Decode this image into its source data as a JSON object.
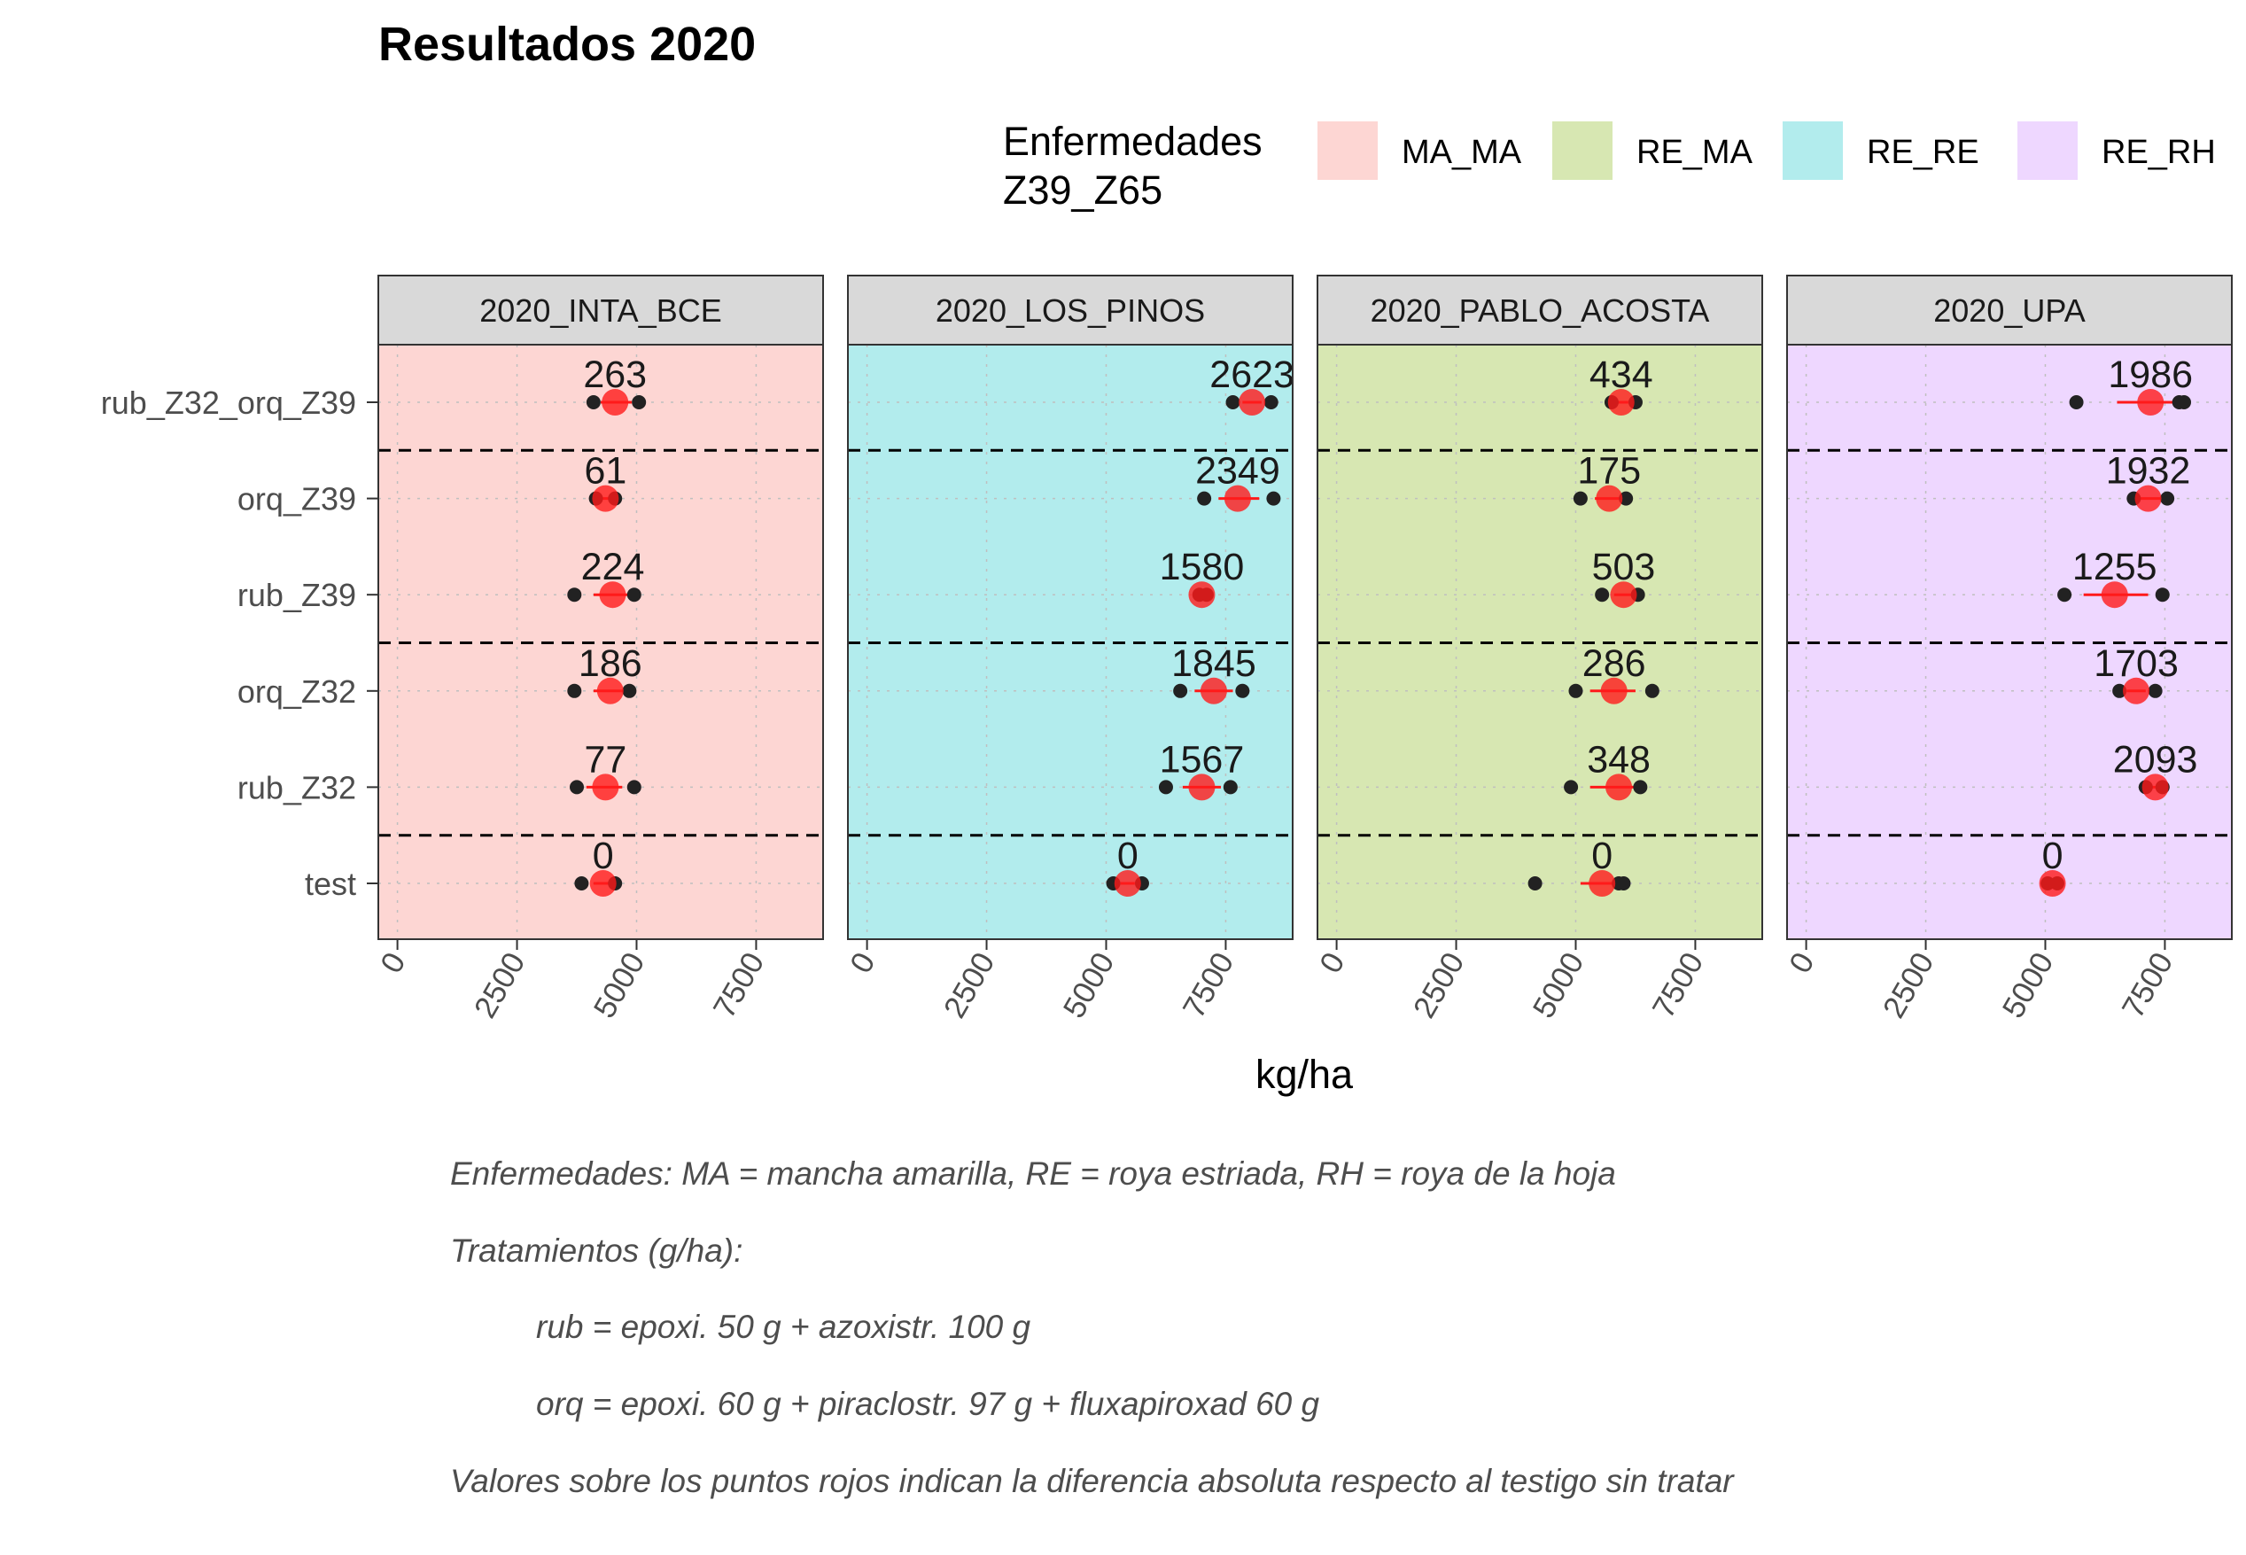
{
  "chart_data": {
    "type": "dot-range",
    "title": "Resultados 2020",
    "xlabel": "kg/ha",
    "ylabel": "",
    "xlim": [
      -400,
      8900
    ],
    "x_ticks": [
      0,
      2500,
      5000,
      7500
    ],
    "grid": true,
    "legend": {
      "title_lines": [
        "Enfermedades",
        "Z39_Z65"
      ],
      "position": "top-right",
      "entries": [
        {
          "label": "MA_MA",
          "color": "#F8766D"
        },
        {
          "label": "RE_MA",
          "color": "#7CAE00"
        },
        {
          "label": "RE_RE",
          "color": "#00BFC4"
        },
        {
          "label": "RE_RH",
          "color": "#C77CFF"
        }
      ]
    },
    "categories": [
      "rub_Z32_orq_Z39",
      "orq_Z39",
      "rub_Z39",
      "orq_Z32",
      "rub_Z32",
      "test"
    ],
    "separator_after": [
      "rub_Z32_orq_Z39",
      "rub_Z39",
      "rub_Z32"
    ],
    "panels": [
      {
        "name": "2020_INTA_BCE",
        "disease": "MA_MA",
        "rows": [
          {
            "cat": "rub_Z32_orq_Z39",
            "points": [
              4100,
              5050
            ],
            "mean": 4550,
            "range": [
              4250,
              4900
            ],
            "label": "263"
          },
          {
            "cat": "orq_Z39",
            "points": [
              4150,
              4550
            ],
            "mean": 4350,
            "range": [
              4250,
              4450
            ],
            "label": "61"
          },
          {
            "cat": "rub_Z39",
            "points": [
              3700,
              4950
            ],
            "mean": 4500,
            "range": [
              4100,
              4850
            ],
            "label": "224"
          },
          {
            "cat": "orq_Z32",
            "points": [
              3700,
              4850
            ],
            "mean": 4450,
            "range": [
              4100,
              4800
            ],
            "label": "186"
          },
          {
            "cat": "rub_Z32",
            "points": [
              3750,
              4950
            ],
            "mean": 4350,
            "range": [
              3950,
              4700
            ],
            "label": "77"
          },
          {
            "cat": "test",
            "points": [
              3850,
              4550
            ],
            "mean": 4300,
            "range": [
              4100,
              4500
            ],
            "label": "0"
          }
        ]
      },
      {
        "name": "2020_LOS_PINOS",
        "disease": "RE_RE",
        "rows": [
          {
            "cat": "rub_Z32_orq_Z39",
            "points": [
              7650,
              8450
            ],
            "mean": 8050,
            "range": [
              7850,
              8250
            ],
            "label": "2623"
          },
          {
            "cat": "orq_Z39",
            "points": [
              7050,
              8500
            ],
            "mean": 7750,
            "range": [
              7350,
              8200
            ],
            "label": "2349"
          },
          {
            "cat": "rub_Z39",
            "points": [
              6950,
              7100
            ],
            "mean": 7000,
            "range": [
              6950,
              7050
            ],
            "label": "1580"
          },
          {
            "cat": "orq_Z32",
            "points": [
              6550,
              7850
            ],
            "mean": 7250,
            "range": [
              6850,
              7650
            ],
            "label": "1845"
          },
          {
            "cat": "rub_Z32",
            "points": [
              6250,
              7600
            ],
            "mean": 7000,
            "range": [
              6600,
              7400
            ],
            "label": "1567"
          },
          {
            "cat": "test",
            "points": [
              5150,
              5750
            ],
            "mean": 5450,
            "range": [
              5300,
              5600
            ],
            "label": "0"
          }
        ]
      },
      {
        "name": "2020_PABLO_ACOSTA",
        "disease": "RE_MA",
        "rows": [
          {
            "cat": "rub_Z32_orq_Z39",
            "points": [
              5750,
              6250
            ],
            "mean": 5950,
            "range": [
              5800,
              6100
            ],
            "label": "434"
          },
          {
            "cat": "orq_Z39",
            "points": [
              5100,
              6050
            ],
            "mean": 5700,
            "range": [
              5400,
              5950
            ],
            "label": "175"
          },
          {
            "cat": "rub_Z39",
            "points": [
              5550,
              6300
            ],
            "mean": 6000,
            "range": [
              5800,
              6200
            ],
            "label": "503"
          },
          {
            "cat": "orq_Z32",
            "points": [
              5000,
              6600
            ],
            "mean": 5800,
            "range": [
              5300,
              6250
            ],
            "label": "286"
          },
          {
            "cat": "rub_Z32",
            "points": [
              4900,
              6350
            ],
            "mean": 5900,
            "range": [
              5300,
              6300
            ],
            "label": "348"
          },
          {
            "cat": "test",
            "points": [
              4150,
              5900,
              6000
            ],
            "mean": 5550,
            "range": [
              5100,
              5950
            ],
            "label": "0"
          }
        ]
      },
      {
        "name": "2020_UPA",
        "disease": "RE_RH",
        "rows": [
          {
            "cat": "rub_Z32_orq_Z39",
            "points": [
              5650,
              7800,
              7900
            ],
            "mean": 7200,
            "range": [
              6500,
              7850
            ],
            "label": "1986"
          },
          {
            "cat": "orq_Z39",
            "points": [
              6850,
              7550
            ],
            "mean": 7150,
            "range": [
              6950,
              7400
            ],
            "label": "1932"
          },
          {
            "cat": "rub_Z39",
            "points": [
              5400,
              7450
            ],
            "mean": 6450,
            "range": [
              5800,
              7150
            ],
            "label": "1255"
          },
          {
            "cat": "orq_Z32",
            "points": [
              6550,
              7300
            ],
            "mean": 6900,
            "range": [
              6700,
              7100
            ],
            "label": "1703"
          },
          {
            "cat": "rub_Z32",
            "points": [
              7100,
              7450
            ],
            "mean": 7300,
            "range": [
              7150,
              7400
            ],
            "label": "2093"
          },
          {
            "cat": "test",
            "points": [
              5050,
              5250
            ],
            "mean": 5150,
            "range": [
              5050,
              5250
            ],
            "label": "0"
          }
        ]
      }
    ]
  },
  "caption": {
    "lines": [
      {
        "text": "Enfermedades: MA = mancha amarilla, RE = roya estriada, RH = roya de la hoja",
        "indent": false
      },
      {
        "text": "Tratamientos (g/ha):",
        "indent": false
      },
      {
        "text": "rub = epoxi. 50 g + azoxistr. 100 g",
        "indent": true
      },
      {
        "text": "orq = epoxi. 60 g + piraclostr. 97 g + fluxapiroxad 60 g",
        "indent": true
      },
      {
        "text": "Valores sobre los puntos rojos indican la diferencia absoluta respecto al testigo sin tratar",
        "indent": false
      }
    ]
  },
  "colors": {
    "mean_point": "#ff1a1a",
    "range_line": "#ff1a1a",
    "raw_point": "#222222",
    "separator": "#000000",
    "strip_fill": "#d9d9d9"
  }
}
